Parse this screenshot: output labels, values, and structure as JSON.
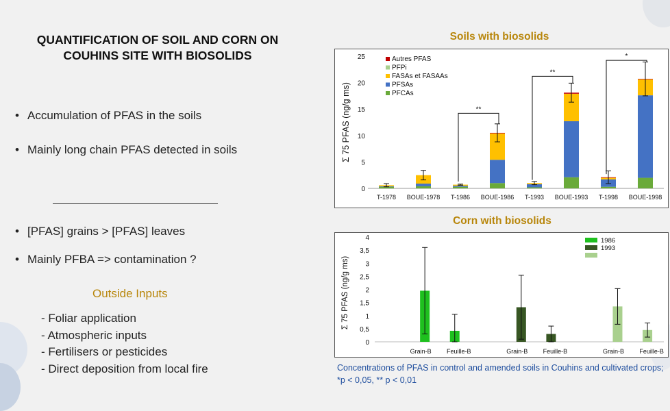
{
  "title_lines": [
    "QUANTIFICATION OF SOIL AND CORN ON",
    "COUHINS SITE WITH BIOSOLIDS"
  ],
  "bullets_top": [
    "Accumulation of PFAS in the soils",
    "Mainly long chain PFAS detected in soils"
  ],
  "bullets_bottom": [
    "[PFAS] grains > [PFAS] leaves",
    "Mainly PFBA => contamination ?"
  ],
  "bullet_glyph": "•",
  "outside": {
    "title": "Outside Inputs",
    "items": [
      "- Foliar application",
      "- Atmospheric inputs",
      "- Fertilisers or pesticides",
      "- Direct deposition from local fire"
    ]
  },
  "soil_title": "Soils with biosolids",
  "corn_title": "Corn with biosolids",
  "caption": "Concentrations of PFAS in control and amended soils in Couhins and cultivated crops;  *p < 0,05, ** p < 0,01",
  "chart_data": [
    {
      "type": "bar",
      "stacked": true,
      "ylabel": "Σ 75 PFAS (ng/g ms)",
      "ylim": [
        0,
        25
      ],
      "yticks": [
        "0",
        "5",
        "10",
        "15",
        "20",
        "25"
      ],
      "categories": [
        "T-1978",
        "BOUE-1978",
        "T-1986",
        "BOUE-1986",
        "T-1993",
        "BOUE-1993",
        "T-1998",
        "BOUE-1998"
      ],
      "series": [
        {
          "name": "PFCAs",
          "color": "#6aaa3a",
          "values": [
            0.3,
            0.4,
            0.3,
            1.0,
            0.2,
            2.1,
            0.3,
            2.0
          ]
        },
        {
          "name": "PFSAs",
          "color": "#4472c4",
          "values": [
            0.1,
            0.5,
            0.2,
            4.4,
            0.6,
            10.6,
            1.4,
            15.6
          ]
        },
        {
          "name": "FASAs et FASAAs",
          "color": "#ffc000",
          "values": [
            0.2,
            1.6,
            0.2,
            5.0,
            0.2,
            5.2,
            0.3,
            3.0
          ]
        },
        {
          "name": "PFPi",
          "color": "#a9d08e",
          "values": [
            0.0,
            0.0,
            0.0,
            0.0,
            0.0,
            0.0,
            0.0,
            0.0
          ]
        },
        {
          "name": "Autres PFAS",
          "color": "#c00000",
          "values": [
            0.0,
            0.0,
            0.0,
            0.1,
            0.0,
            0.2,
            0.1,
            0.1
          ]
        }
      ],
      "errors": [
        0.3,
        0.9,
        0.1,
        1.7,
        0.3,
        1.8,
        1.2,
        3.2
      ],
      "legend_order": [
        "Autres PFAS",
        "PFPi",
        "FASAs et FASAAs",
        "PFSAs",
        "PFCAs"
      ],
      "legend_position": "top-left",
      "significance": [
        {
          "pair": [
            2,
            3
          ],
          "label": "**",
          "level": 14.2
        },
        {
          "pair": [
            4,
            5
          ],
          "label": "**",
          "level": 21.2
        },
        {
          "pair": [
            6,
            7
          ],
          "label": "*",
          "level": 24.2
        }
      ]
    },
    {
      "type": "bar",
      "ylabel": "Σ 75 PFAS (ng/g ms)",
      "ylim": [
        0,
        4
      ],
      "yticks": [
        "0",
        "0,5",
        "1",
        "1,5",
        "2",
        "2,5",
        "3",
        "3,5",
        "4"
      ],
      "legend_position": "top-right",
      "groups": [
        {
          "label": "1986",
          "color": "#1ec01e",
          "bars": [
            {
              "name": "Grain-B",
              "value": 1.95,
              "error": 1.65
            },
            {
              "name": "Feuille-B",
              "value": 0.42,
              "error": 0.63
            }
          ]
        },
        {
          "label": "1993",
          "color": "#375623",
          "bars": [
            {
              "name": "Grain-B",
              "value": 1.32,
              "error": 1.22
            },
            {
              "name": "Feuille-B",
              "value": 0.3,
              "error": 0.3
            }
          ]
        },
        {
          "label": "",
          "color": "#a9d08e",
          "bars": [
            {
              "name": "Grain-B",
              "value": 1.35,
              "error": 0.68
            },
            {
              "name": "Feuille-B",
              "value": 0.45,
              "error": 0.27
            }
          ]
        }
      ]
    }
  ]
}
